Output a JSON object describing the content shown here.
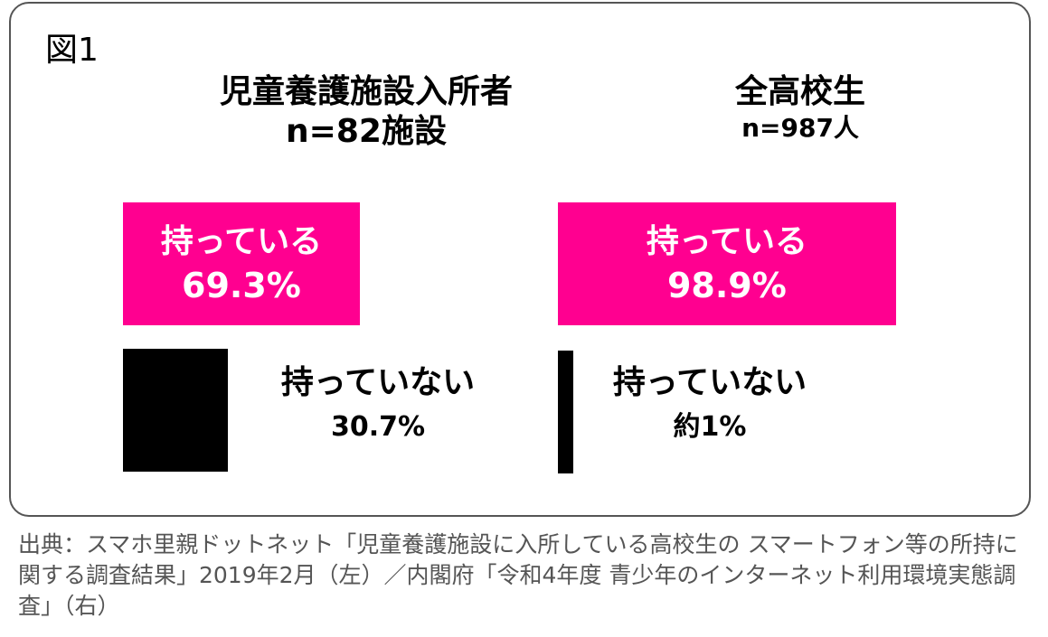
{
  "figure_label": "図1",
  "source": "出典：スマホ里親ドットネット「児童養護施設に入所している高校生の スマートフォン等の所持に関する調査結果」2019年2月（左）／内閣府「令和4年度 青少年のインターネット利用環境実態調査」（右）",
  "colors": {
    "have": "#FF0090",
    "not_have": "#000000"
  },
  "chart_data": [
    {
      "type": "bar",
      "title": "児童養護施設入所者",
      "subtitle": "n=82施設",
      "categories": [
        "持っている",
        "持っていない"
      ],
      "values": [
        69.3,
        30.7
      ],
      "value_labels": [
        "69.3%",
        "30.7%"
      ],
      "unit": "%"
    },
    {
      "type": "bar",
      "title": "全高校生",
      "subtitle": "n=987人",
      "categories": [
        "持っている",
        "持っていない"
      ],
      "values": [
        98.9,
        1
      ],
      "value_labels": [
        "98.9%",
        "約1%"
      ],
      "unit": "%"
    }
  ]
}
